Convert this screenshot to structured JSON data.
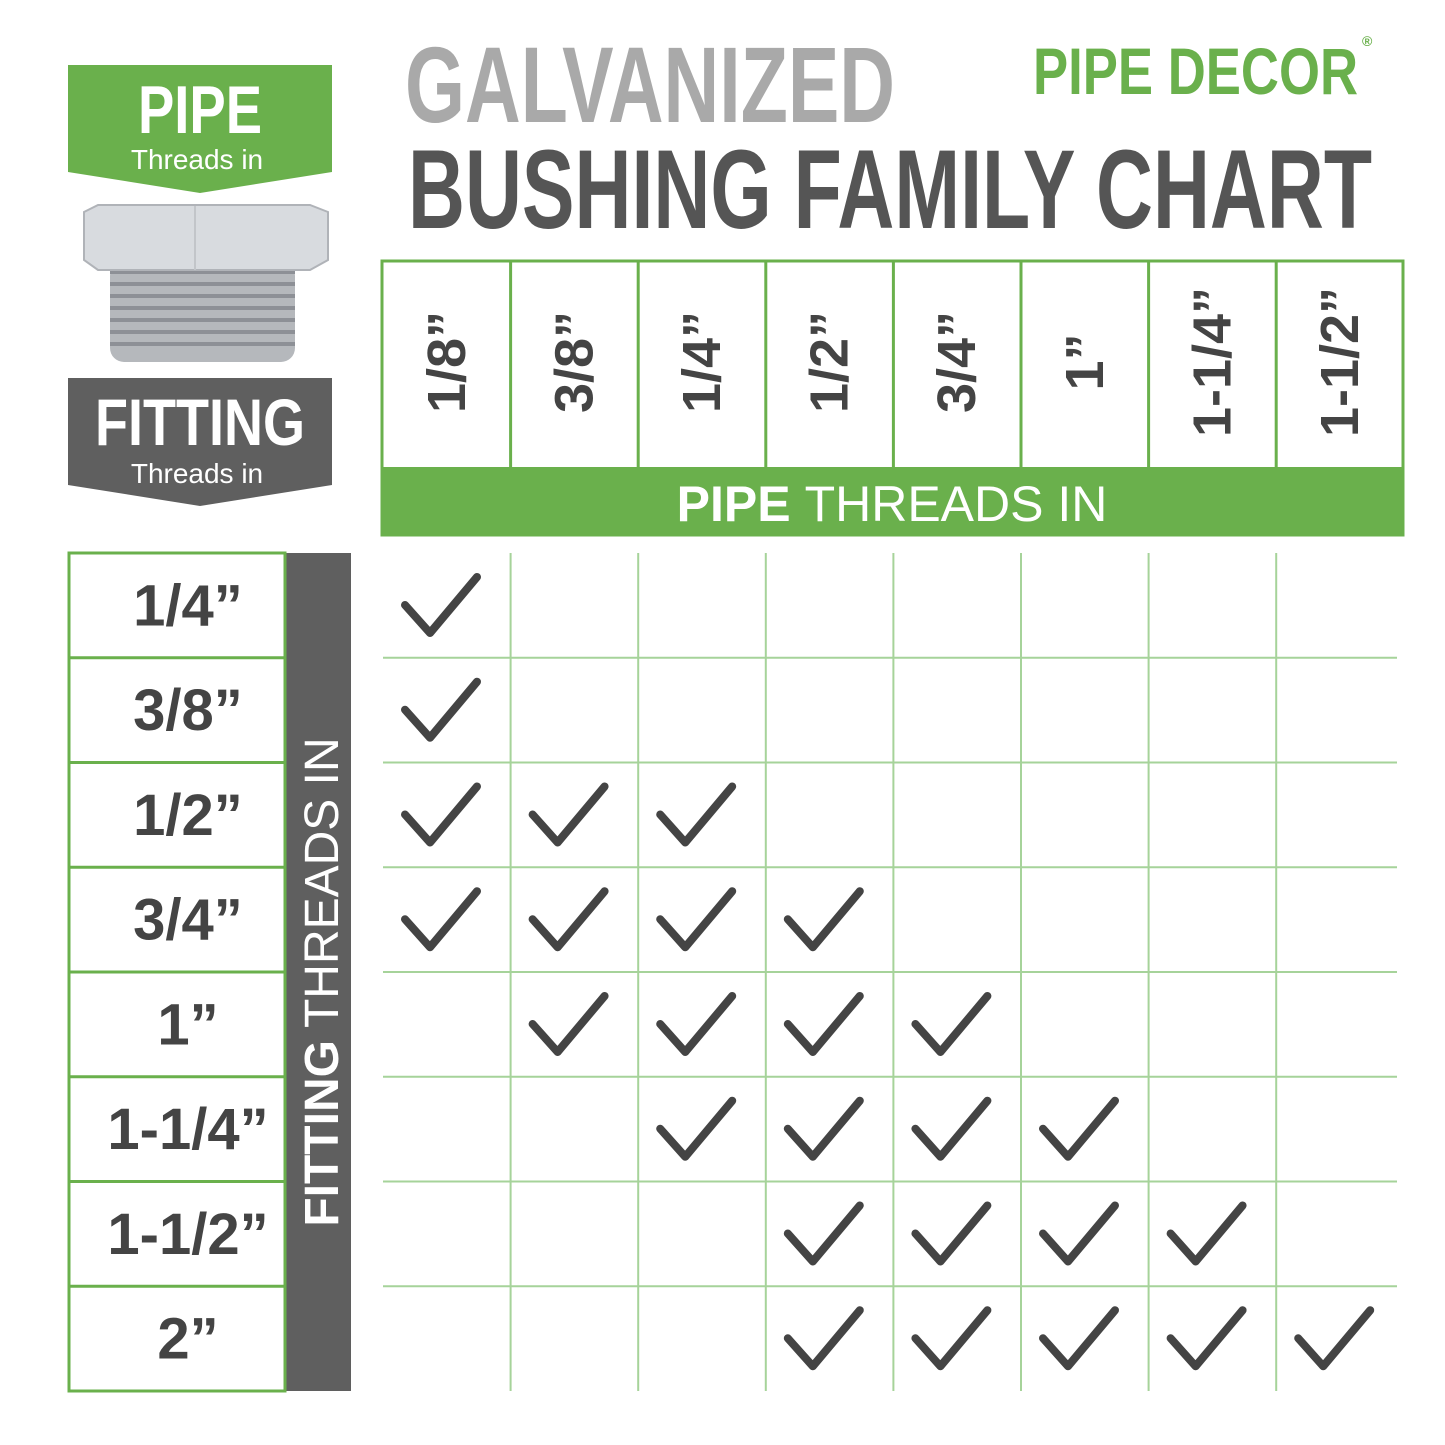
{
  "title": {
    "line1": "GALVANIZED",
    "line2": "BUSHING FAMILY CHART"
  },
  "brand": {
    "name": "PIPE DECOR",
    "mark": "®"
  },
  "legend": {
    "pipe": {
      "label": "PIPE",
      "sub": "Threads in"
    },
    "fitting": {
      "label": "FITTING",
      "sub": "Threads in"
    }
  },
  "table": {
    "column_axis": {
      "bold": "PIPE",
      "rest": "THREADS IN"
    },
    "row_axis": {
      "bold": "FITTING",
      "rest": "THREADS IN"
    },
    "columns": [
      "1/8”",
      "3/8”",
      "1/4”",
      "1/2”",
      "3/4”",
      "1”",
      "1-1/4”",
      "1-1/2”"
    ],
    "rows": [
      "1/4”",
      "3/8”",
      "1/2”",
      "3/4”",
      "1”",
      "1-1/4”",
      "1-1/2”",
      "2”"
    ],
    "cells": [
      [
        true,
        false,
        false,
        false,
        false,
        false,
        false,
        false
      ],
      [
        true,
        false,
        false,
        false,
        false,
        false,
        false,
        false
      ],
      [
        true,
        true,
        true,
        false,
        false,
        false,
        false,
        false
      ],
      [
        true,
        true,
        true,
        true,
        false,
        false,
        false,
        false
      ],
      [
        false,
        true,
        true,
        true,
        true,
        false,
        false,
        false
      ],
      [
        false,
        false,
        true,
        true,
        true,
        true,
        false,
        false
      ],
      [
        false,
        false,
        false,
        true,
        true,
        true,
        true,
        false
      ],
      [
        false,
        false,
        false,
        true,
        true,
        true,
        true,
        true
      ]
    ]
  }
}
